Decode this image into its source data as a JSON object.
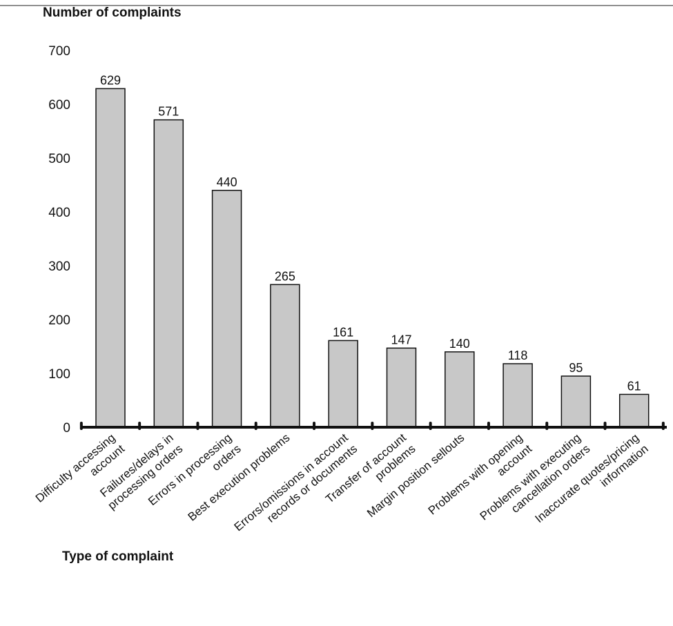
{
  "chart_data": {
    "type": "bar",
    "ylabel": "Number of complaints",
    "xlabel": "Type of complaint",
    "ylim": [
      0,
      700
    ],
    "yticks": [
      0,
      100,
      200,
      300,
      400,
      500,
      600,
      700
    ],
    "grid": false,
    "categories": [
      [
        "Difficulty accessing",
        "account"
      ],
      [
        "Failures/delays in",
        "processing orders"
      ],
      [
        "Errors in processing",
        "orders"
      ],
      [
        "Best execution problems"
      ],
      [
        "Errors/omissions in account",
        "records or documents"
      ],
      [
        "Transfer of account",
        "problems"
      ],
      [
        "Margin position sellouts"
      ],
      [
        "Problems with opening",
        "account"
      ],
      [
        "Problems with executing",
        "cancellation orders"
      ],
      [
        "Inaccurate quotes/pricing",
        "information"
      ]
    ],
    "values": [
      629,
      571,
      440,
      265,
      161,
      147,
      140,
      118,
      95,
      61
    ],
    "colors": {
      "bar_fill": "#c8c8c8",
      "bar_stroke": "#111111",
      "axis": "#111111"
    }
  }
}
